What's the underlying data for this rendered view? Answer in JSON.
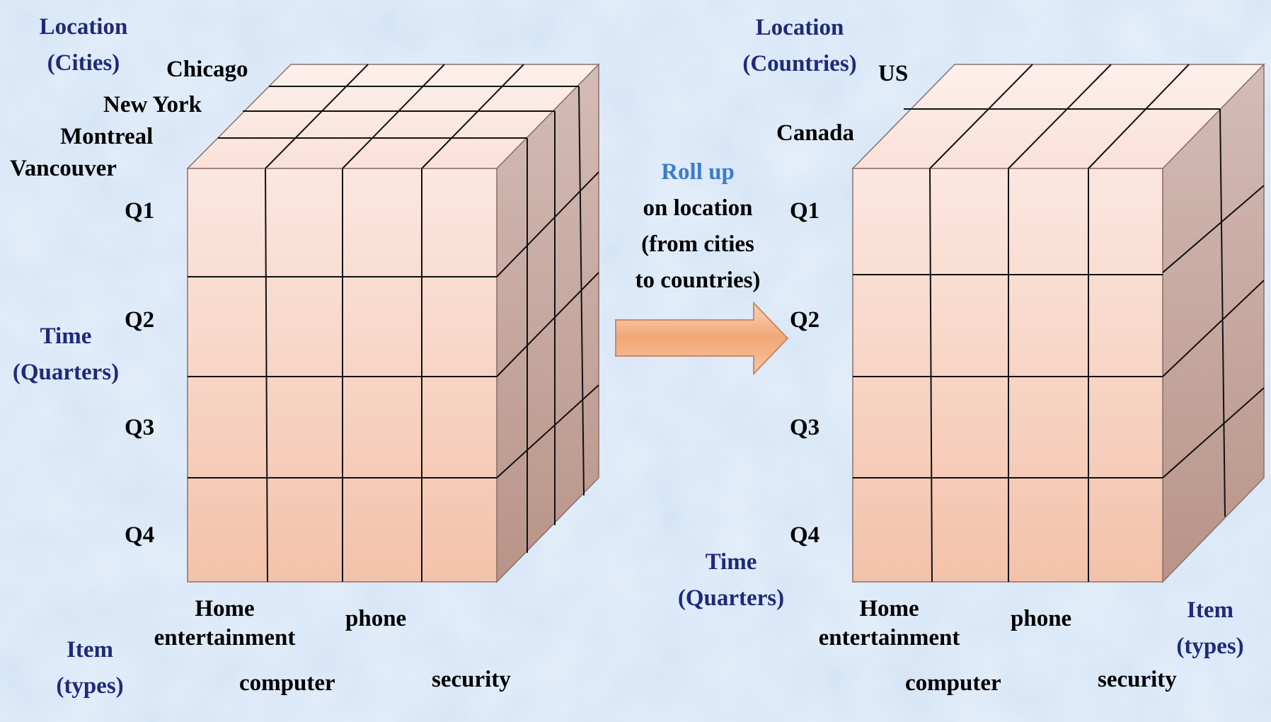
{
  "left_cube": {
    "location_axis": [
      "Location",
      "(Cities)"
    ],
    "cities": [
      "Chicago",
      "New York",
      "Montreal",
      "Vancouver"
    ],
    "time_axis": [
      "Time",
      "(Quarters)"
    ],
    "quarters": [
      "Q1",
      "Q2",
      "Q3",
      "Q4"
    ],
    "item_axis": [
      "Item",
      "(types)"
    ],
    "items": {
      "home_line1": "Home",
      "home_line2": "entertainment",
      "computer": "computer",
      "phone": "phone",
      "security": "security"
    }
  },
  "operation": {
    "title": "Roll up",
    "lines": [
      "on location",
      "(from cities",
      "to countries)"
    ],
    "arrow_icon": "right-arrow-icon"
  },
  "right_cube": {
    "location_axis": [
      "Location",
      "(Countries)"
    ],
    "countries": [
      "US",
      "Canada"
    ],
    "time_axis": [
      "Time",
      "(Quarters)"
    ],
    "quarters": [
      "Q1",
      "Q2",
      "Q3",
      "Q4"
    ],
    "item_axis": [
      "Item",
      "(types)"
    ],
    "items": {
      "home_line1": "Home",
      "home_line2": "entertainment",
      "computer": "computer",
      "phone": "phone",
      "security": "security"
    }
  },
  "colors": {
    "background": "#d3e3f5",
    "cube_front_top": "#fbe7e0",
    "cube_front_bottom": "#f3c2aa",
    "cube_side": "#c4a298",
    "axis_text": "#1e2a7a",
    "rollup_text": "#3d7cc9",
    "arrow": "#f0a87a"
  }
}
